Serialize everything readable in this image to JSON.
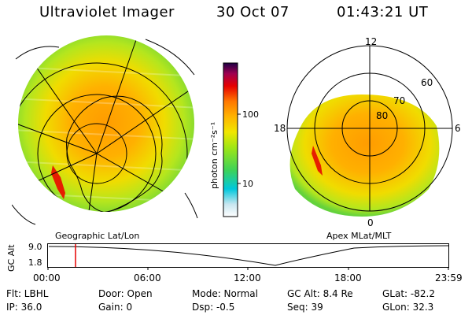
{
  "header": {
    "instrument": "Ultraviolet Imager",
    "date": "30 Oct 07",
    "time": "01:43:21 UT"
  },
  "colorbar": {
    "unit_label": "photon cm⁻²s⁻¹",
    "tick_100": "100",
    "tick_10": "10",
    "colors": [
      "#ffffff",
      "#c8e6f0",
      "#00c8dc",
      "#3cd25a",
      "#a0e614",
      "#f0e600",
      "#ffb400",
      "#ff7800",
      "#e60000",
      "#a00050",
      "#1e0046"
    ]
  },
  "left_panel": {
    "caption": "Geographic Lat/Lon"
  },
  "right_panel": {
    "caption": "Apex MLat/MLT",
    "mlt_12": "12",
    "mlt_18": "18",
    "mlt_6": "6",
    "mlt_0": "0",
    "lat_60": "60",
    "lat_70": "70",
    "lat_80": "80"
  },
  "altitude_plot": {
    "ylabel": "GC Alt",
    "y_high": "9.0",
    "y_low": "1.8",
    "x_ticks": [
      "00:00",
      "06:00",
      "12:00",
      "18:00",
      "23:59"
    ]
  },
  "info": {
    "flt": "Flt: LBHL",
    "ip": "IP: 36.0",
    "door": "Door: Open",
    "gain": "Gain:  0",
    "mode": "Mode: Normal",
    "dsp": "Dsp:   -0.5",
    "gc_alt": "GC Alt: 8.4 Re",
    "seq": "Seq: 39",
    "glat": "GLat: -82.2",
    "glon": "GLon:  32.3"
  }
}
